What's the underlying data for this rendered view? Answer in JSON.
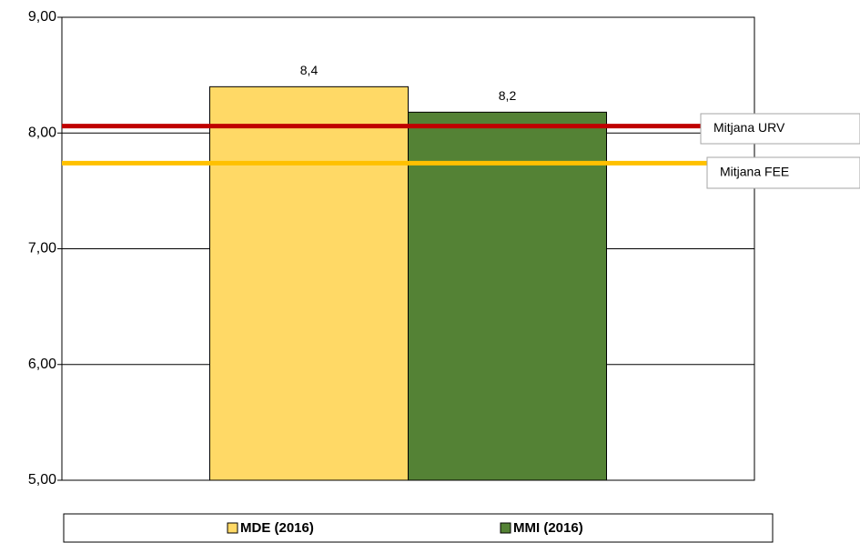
{
  "chart_data": {
    "type": "bar",
    "categories": [
      null
    ],
    "series": [
      {
        "name": "MDE (2016)",
        "color": "#ffd966",
        "values": [
          8.4
        ],
        "value_labels": [
          "8,4"
        ]
      },
      {
        "name": "MMI (2016)",
        "color": "#548235",
        "values": [
          8.18
        ],
        "value_labels": [
          "8,2"
        ]
      }
    ],
    "reference_lines": [
      {
        "name": "Mitjana URV",
        "value": 8.06,
        "color": "#c00000"
      },
      {
        "name": "Mitjana FEE",
        "value": 7.74,
        "color": "#ffc000"
      }
    ],
    "ylim": [
      5,
      9
    ],
    "yticks": [
      {
        "value": 5,
        "label": "5,00"
      },
      {
        "value": 6,
        "label": "6,00"
      },
      {
        "value": 7,
        "label": "7,00"
      },
      {
        "value": 8,
        "label": "8,00"
      },
      {
        "value": 9,
        "label": "9,00"
      }
    ],
    "grid": true
  }
}
